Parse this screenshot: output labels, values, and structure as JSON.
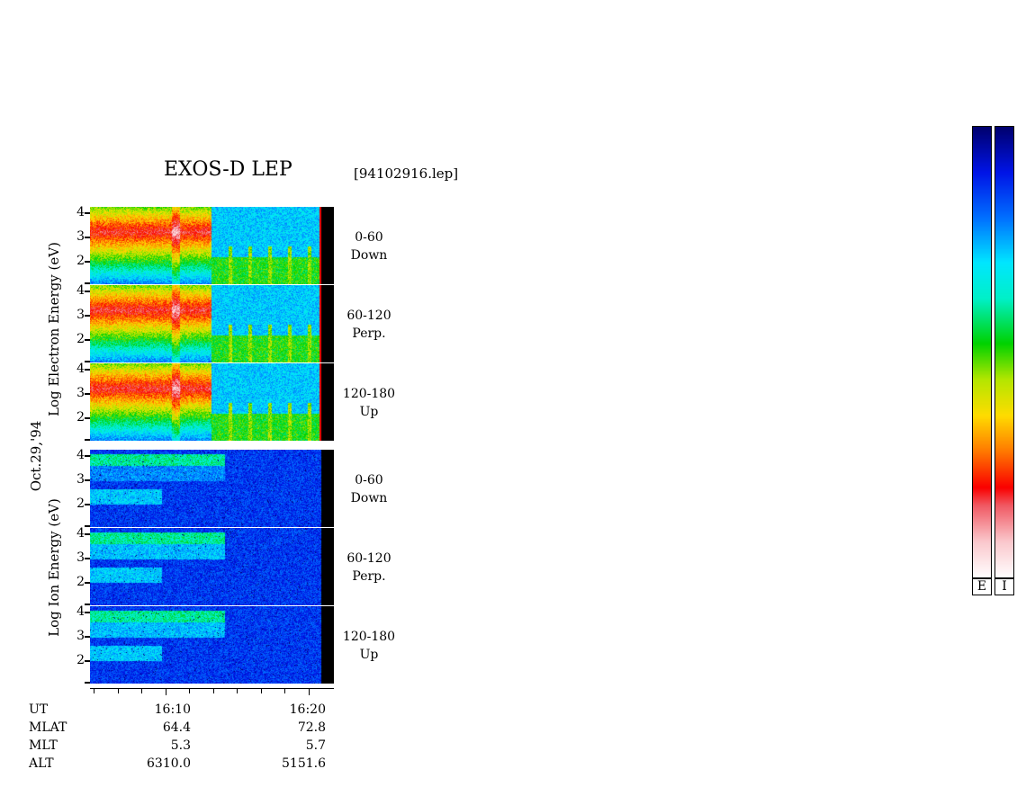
{
  "title": "EXOS-D LEP",
  "file_label": "[94102916.lep]",
  "date_label": "Oct.29,'94",
  "electron_ylabel": [
    "Log",
    "Electron",
    "Energy",
    "(eV)"
  ],
  "ion_ylabel": [
    "Log",
    "Ion",
    "Energy",
    "(eV)"
  ],
  "electron_ylabel_text": "Log Electron Energy (eV)",
  "ion_ylabel_text": "Log Ion Energy (eV)",
  "colorbar_labels": [
    "E",
    "I"
  ],
  "chart_data": {
    "type": "heatmap",
    "panels": [
      {
        "species": "electron",
        "angle": "0-60",
        "direction": "Down"
      },
      {
        "species": "electron",
        "angle": "60-120",
        "direction": "Perp."
      },
      {
        "species": "electron",
        "angle": "120-180",
        "direction": "Up"
      },
      {
        "species": "ion",
        "angle": "0-60",
        "direction": "Down"
      },
      {
        "species": "ion",
        "angle": "60-120",
        "direction": "Perp."
      },
      {
        "species": "ion",
        "angle": "120-180",
        "direction": "Up"
      }
    ],
    "y_ticks": [
      "4",
      "3",
      "2"
    ],
    "y_range_log_eV": [
      1,
      4.1
    ],
    "x_tick_labels": [
      "16:10",
      "16:20"
    ],
    "ephemeris": {
      "rows": [
        {
          "label": "UT",
          "values": [
            "16:10",
            "16:20"
          ]
        },
        {
          "label": "MLAT",
          "values": [
            "64.4",
            "72.8"
          ]
        },
        {
          "label": "MLT",
          "values": [
            "5.3",
            "5.7"
          ]
        },
        {
          "label": "ALT",
          "values": [
            "6310.0",
            "5151.6"
          ]
        }
      ]
    }
  }
}
